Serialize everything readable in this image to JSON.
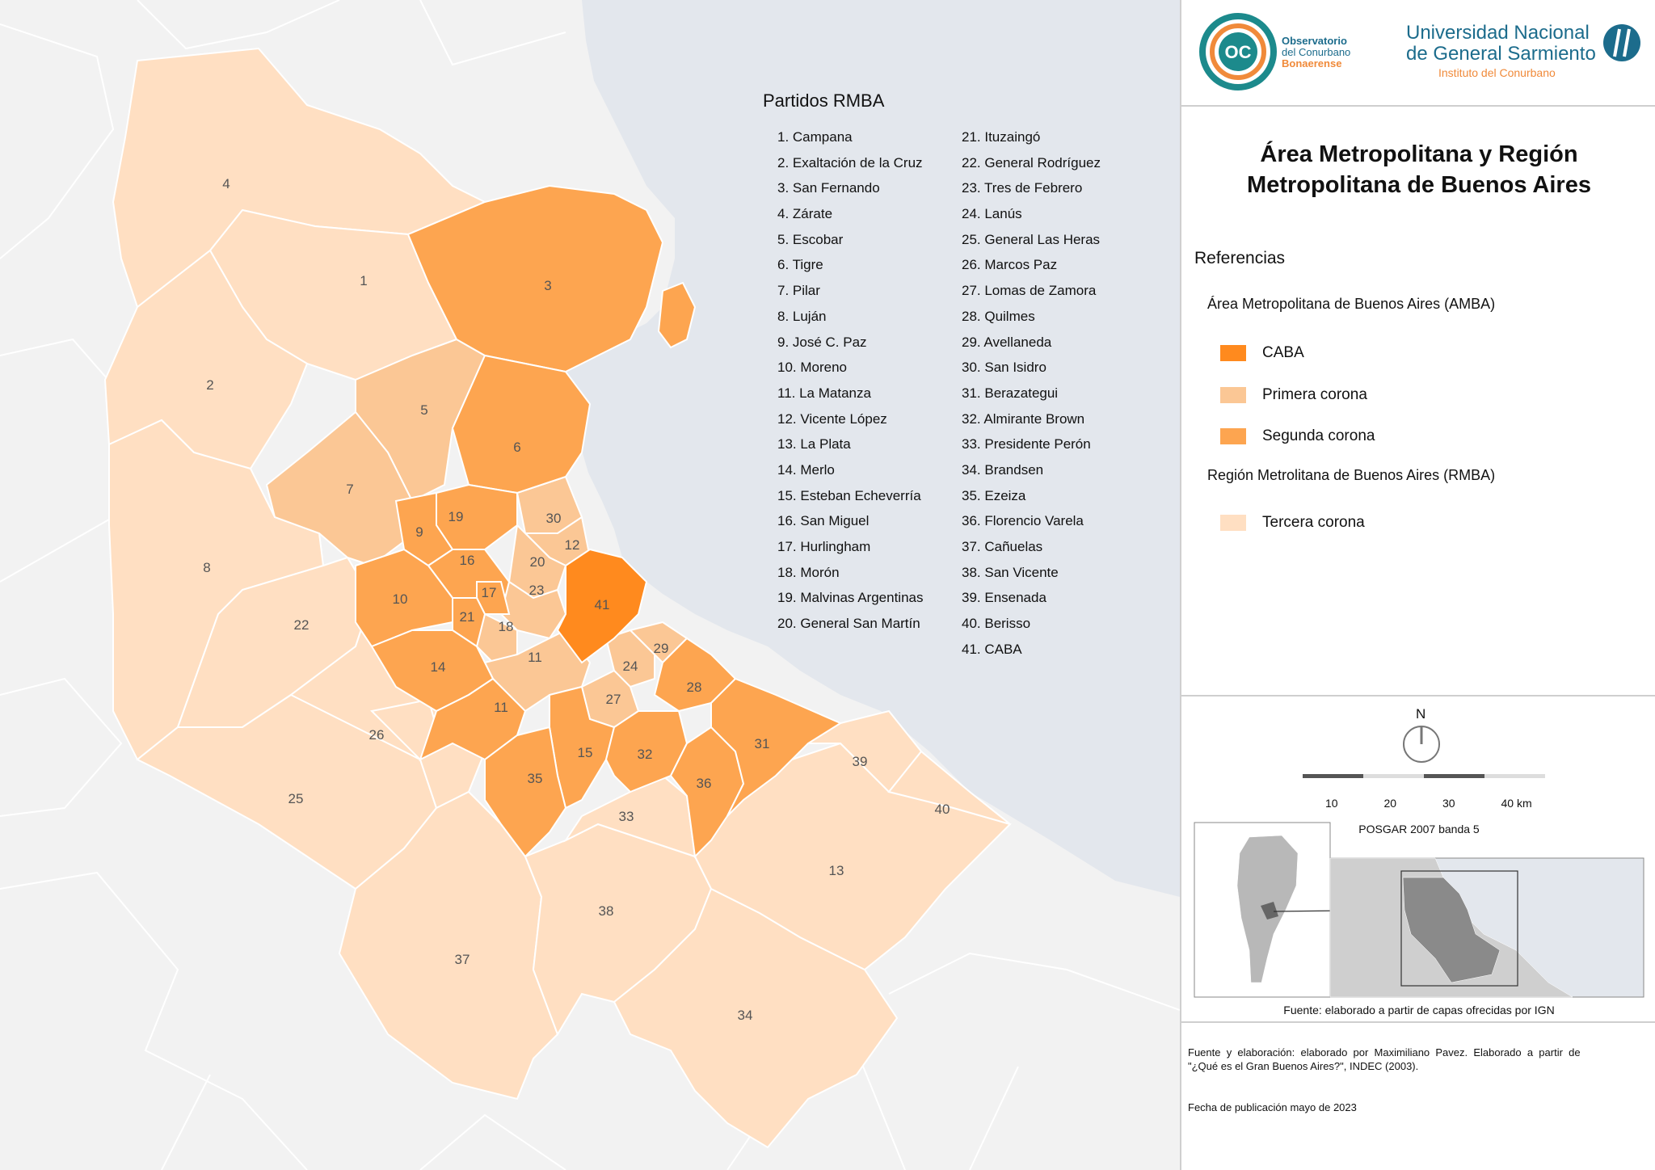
{
  "legend": {
    "title": "Partidos RMBA",
    "col1": [
      "1. Campana",
      "2. Exaltación de la Cruz",
      "3. San Fernando",
      "4. Zárate",
      "5. Escobar",
      "6. Tigre",
      "7. Pilar",
      "8. Luján",
      "9. José C. Paz",
      "10. Moreno",
      "11. La Matanza",
      "12. Vicente López",
      "13. La Plata",
      "14. Merlo",
      "15. Esteban Echeverría",
      "16. San Miguel",
      "17. Hurlingham",
      "18. Morón",
      "19. Malvinas Argentinas",
      "20. General San Martín"
    ],
    "col2": [
      "21. Ituzaingó",
      "22. General Rodríguez",
      "23. Tres de Febrero",
      "24. Lanús",
      "25. General Las Heras",
      "26. Marcos Paz",
      "27. Lomas de Zamora",
      "28. Quilmes",
      "29. Avellaneda",
      "30. San Isidro",
      "31. Berazategui",
      "32. Almirante Brown",
      "33. Presidente Perón",
      "34. Brandsen",
      "35. Ezeiza",
      "36. Florencio Varela",
      "37. Cañuelas",
      "38. San Vicente",
      "39. Ensenada",
      "40. Berisso",
      "41. CABA"
    ]
  },
  "logos": {
    "occ_mark": "OC",
    "occ_line1": "Observatorio",
    "occ_line2": "del Conurbano",
    "occ_line3": "Bonaerense",
    "ungs_line1": "Universidad  Nacional",
    "ungs_line2": "de General Sarmiento",
    "ungs_line3": "Instituto del Conurbano"
  },
  "title": {
    "line1": "Área Metropolitana y Región",
    "line2": "Metropolitana de Buenos Aires"
  },
  "references": {
    "heading": "Referencias",
    "amba_heading": "Área Metropolitana de Buenos Aires (AMBA)",
    "rmba_heading": "Región Metrolitana de Buenos Aires (RMBA)",
    "caba": "CABA",
    "primera": "Primera corona",
    "segunda": "Segunda corona",
    "tercera": "Tercera corona"
  },
  "colors": {
    "caba": "#ff8a1e",
    "primera": "#fbc795",
    "segunda": "#fda550",
    "tercera": "#ffdfc2",
    "river": "#e3e7ed",
    "land": "#f2f2f2"
  },
  "scale": {
    "north": "N",
    "ticks": [
      "10",
      "20",
      "30",
      "40 km"
    ],
    "projection": "POSGAR 2007 banda 5"
  },
  "source_inset": "Fuente: elaborado a partir de capas ofrecidas por IGN",
  "credits": {
    "line1": "Fuente  y  elaboración:  elaborado  por  Maximiliano  Pavez.  Elaborado  a  partir  de",
    "line2": "\"¿Qué es el Gran Buenos Aires?\", INDEC (2003).",
    "date": "Fecha de publicación mayo de 2023"
  },
  "map_labels": {
    "p1": "1",
    "p2": "2",
    "p3": "3",
    "p4": "4",
    "p5": "5",
    "p6": "6",
    "p7": "7",
    "p8": "8",
    "p9": "9",
    "p10": "10",
    "p11a": "11",
    "p11b": "11",
    "p12": "12",
    "p13": "13",
    "p14": "14",
    "p15": "15",
    "p16": "16",
    "p17": "17",
    "p18": "18",
    "p19": "19",
    "p20": "20",
    "p21": "21",
    "p22": "22",
    "p23": "23",
    "p24": "24",
    "p25": "25",
    "p26": "26",
    "p27": "27",
    "p28": "28",
    "p29": "29",
    "p30": "30",
    "p31": "31",
    "p32": "32",
    "p33": "33",
    "p34": "34",
    "p35": "35",
    "p36": "36",
    "p37": "37",
    "p38": "38",
    "p39": "39",
    "p40": "40",
    "p41": "41"
  }
}
